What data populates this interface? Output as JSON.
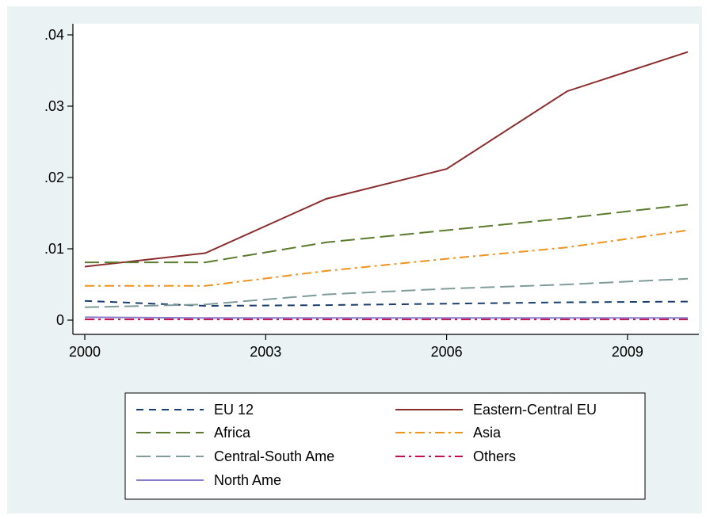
{
  "chart_data": {
    "type": "line",
    "title": "",
    "xlabel": "",
    "ylabel": "",
    "xlim": [
      2000,
      2010
    ],
    "ylim": [
      0,
      0.04
    ],
    "x_ticks": [
      2000,
      2003,
      2006,
      2009
    ],
    "x_tick_labels": [
      "2000",
      "2003",
      "2006",
      "2009"
    ],
    "y_ticks": [
      0,
      0.01,
      0.02,
      0.03,
      0.04
    ],
    "y_tick_labels": [
      "0",
      ".01",
      ".02",
      ".03",
      ".04"
    ],
    "x": [
      2000,
      2002,
      2004,
      2006,
      2008,
      2010
    ],
    "series": [
      {
        "name": "EU 12",
        "color": "#1a3e6e",
        "dash": "dash",
        "values": [
          0.0027,
          0.002,
          0.0021,
          0.0023,
          0.0025,
          0.0026
        ]
      },
      {
        "name": "Eastern-Central EU",
        "color": "#8b2c2c",
        "dash": "solid",
        "values": [
          0.0075,
          0.0094,
          0.017,
          0.0212,
          0.0321,
          0.0376
        ]
      },
      {
        "name": "Africa",
        "color": "#5a7a2e",
        "dash": "longdash",
        "values": [
          0.0081,
          0.0081,
          0.0109,
          0.0126,
          0.0143,
          0.0162
        ]
      },
      {
        "name": "Asia",
        "color": "#f0921e",
        "dash": "dashdot",
        "values": [
          0.0048,
          0.0048,
          0.0069,
          0.0086,
          0.0102,
          0.0126
        ]
      },
      {
        "name": "Central-South Ame",
        "color": "#7f9c9a",
        "dash": "longdash",
        "values": [
          0.0018,
          0.0022,
          0.0036,
          0.0044,
          0.005,
          0.0058
        ]
      },
      {
        "name": "Others",
        "color": "#c4104a",
        "dash": "dashdot",
        "values": [
          0.0001,
          0.0001,
          0.0001,
          0.0001,
          0.0001,
          0.0001
        ]
      },
      {
        "name": "North Ame",
        "color": "#8d79c9",
        "dash": "solid",
        "values": [
          0.0004,
          0.0003,
          0.0003,
          0.0003,
          0.0003,
          0.0003
        ]
      }
    ],
    "grid": false,
    "legend_position": "bottom"
  }
}
